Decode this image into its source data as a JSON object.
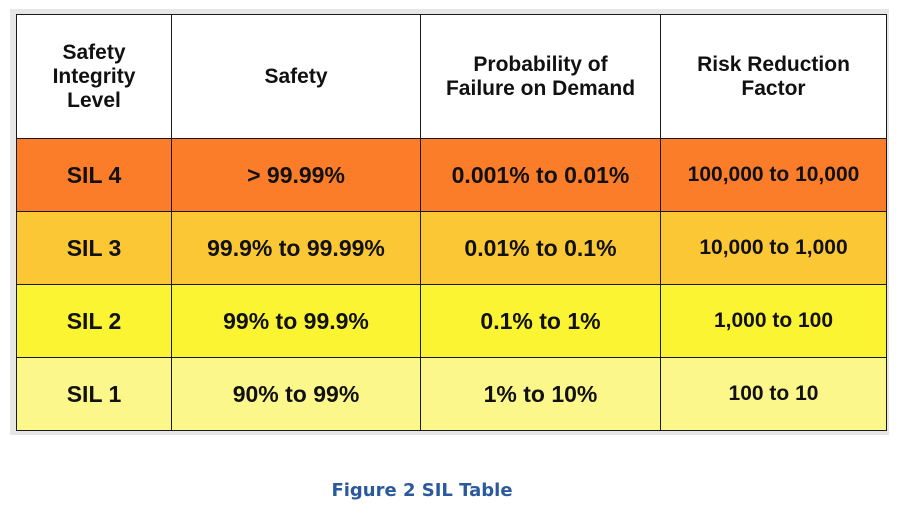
{
  "table": {
    "headers": [
      "Safety\nIntegrity\nLevel",
      "Safety",
      "Probability of\nFailure on Demand",
      "Risk Reduction\nFactor"
    ],
    "rows": [
      {
        "level": "SIL 4",
        "safety": "> 99.99%",
        "pfd": "0.001% to 0.01%",
        "rrf": "100,000 to 10,000",
        "color": "#fb7d2a"
      },
      {
        "level": "SIL 3",
        "safety": "99.9% to 99.99%",
        "pfd": "0.01% to 0.1%",
        "rrf": "10,000 to 1,000",
        "color": "#fbc734"
      },
      {
        "level": "SIL 2",
        "safety": "99% to 99.9%",
        "pfd": "0.1% to 1%",
        "rrf": "1,000 to 100",
        "color": "#fbf432"
      },
      {
        "level": "SIL 1",
        "safety": "90% to 99%",
        "pfd": "1% to 10%",
        "rrf": "100 to 10",
        "color": "#fcf78a"
      }
    ]
  },
  "caption": "Figure 2 SIL Table"
}
